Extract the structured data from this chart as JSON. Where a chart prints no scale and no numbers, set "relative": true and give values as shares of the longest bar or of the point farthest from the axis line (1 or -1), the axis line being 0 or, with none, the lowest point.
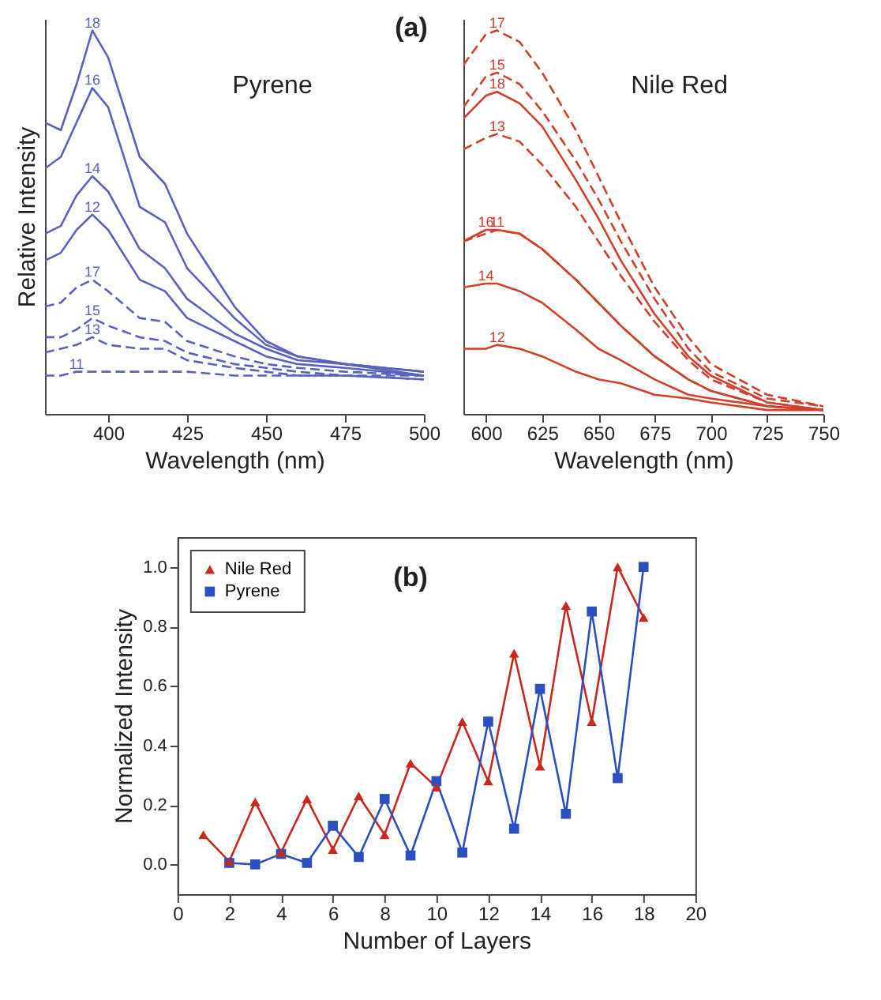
{
  "chart_data": [
    {
      "type": "line",
      "title": "Pyrene",
      "annotations": [
        "(a)"
      ],
      "xlabel": "Wavelength (nm)",
      "ylabel": "Relative Intensity",
      "relative": true,
      "tick_labels": "x",
      "xlim": [
        380,
        500
      ],
      "xticks": [
        400,
        425,
        450,
        475,
        500
      ],
      "x": [
        380,
        385,
        390,
        395,
        400,
        410,
        418,
        425,
        440,
        450,
        460,
        475,
        500
      ],
      "series": [
        {
          "name": "18",
          "color": "#5a62c0",
          "line_style": "solid",
          "values": [
            0.76,
            0.74,
            0.86,
            1.0,
            0.93,
            0.67,
            0.6,
            0.47,
            0.28,
            0.19,
            0.15,
            0.13,
            0.11
          ]
        },
        {
          "name": "16",
          "color": "#5a62c0",
          "line_style": "solid",
          "values": [
            0.64,
            0.67,
            0.76,
            0.85,
            0.8,
            0.54,
            0.5,
            0.38,
            0.25,
            0.18,
            0.15,
            0.13,
            0.11
          ]
        },
        {
          "name": "14",
          "color": "#5a62c0",
          "line_style": "solid",
          "values": [
            0.47,
            0.49,
            0.57,
            0.62,
            0.58,
            0.43,
            0.38,
            0.3,
            0.21,
            0.17,
            0.14,
            0.13,
            0.1
          ]
        },
        {
          "name": "12",
          "color": "#5a62c0",
          "line_style": "solid",
          "values": [
            0.4,
            0.42,
            0.48,
            0.52,
            0.48,
            0.35,
            0.32,
            0.25,
            0.19,
            0.15,
            0.13,
            0.12,
            0.1
          ]
        },
        {
          "name": "17",
          "color": "#5a62c0",
          "line_style": "dashed",
          "values": [
            0.28,
            0.29,
            0.33,
            0.35,
            0.32,
            0.25,
            0.24,
            0.19,
            0.15,
            0.13,
            0.12,
            0.11,
            0.1
          ]
        },
        {
          "name": "15",
          "color": "#5a62c0",
          "line_style": "dashed",
          "values": [
            0.2,
            0.2,
            0.22,
            0.25,
            0.23,
            0.2,
            0.19,
            0.16,
            0.13,
            0.12,
            0.11,
            0.1,
            0.1
          ]
        },
        {
          "name": "13",
          "color": "#5a62c0",
          "line_style": "dashed",
          "values": [
            0.16,
            0.17,
            0.18,
            0.2,
            0.18,
            0.17,
            0.17,
            0.14,
            0.12,
            0.11,
            0.1,
            0.1,
            0.09
          ]
        },
        {
          "name": "11",
          "color": "#5a62c0",
          "line_style": "dashed",
          "values": [
            0.1,
            0.1,
            0.11,
            0.11,
            0.11,
            0.11,
            0.11,
            0.11,
            0.1,
            0.1,
            0.1,
            0.1,
            0.09
          ]
        }
      ]
    },
    {
      "type": "line",
      "title": "Nile Red",
      "xlabel": "Wavelength (nm)",
      "relative": true,
      "tick_labels": "x",
      "xlim": [
        590,
        750
      ],
      "xticks": [
        600,
        625,
        650,
        675,
        700,
        725,
        750
      ],
      "x": [
        590,
        600,
        605,
        615,
        625,
        640,
        650,
        660,
        675,
        690,
        700,
        725,
        750
      ],
      "series": [
        {
          "name": "17",
          "color": "#d0402a",
          "line_style": "dashed",
          "values": [
            0.91,
            0.99,
            1.0,
            0.97,
            0.89,
            0.74,
            0.62,
            0.5,
            0.33,
            0.2,
            0.13,
            0.05,
            0.02
          ]
        },
        {
          "name": "15",
          "color": "#d0402a",
          "line_style": "dashed",
          "values": [
            0.8,
            0.88,
            0.89,
            0.86,
            0.79,
            0.66,
            0.56,
            0.45,
            0.3,
            0.17,
            0.11,
            0.04,
            0.02
          ]
        },
        {
          "name": "18",
          "color": "#d0402a",
          "line_style": "solid",
          "values": [
            0.77,
            0.83,
            0.84,
            0.81,
            0.75,
            0.61,
            0.51,
            0.4,
            0.26,
            0.15,
            0.1,
            0.03,
            0.01
          ]
        },
        {
          "name": "13",
          "color": "#d0402a",
          "line_style": "dashed",
          "values": [
            0.69,
            0.72,
            0.73,
            0.71,
            0.65,
            0.54,
            0.45,
            0.36,
            0.24,
            0.14,
            0.09,
            0.03,
            0.01
          ]
        },
        {
          "name": "11",
          "color": "#d0402a",
          "line_style": "dashed",
          "values": [
            0.45,
            0.47,
            0.48,
            0.47,
            0.43,
            0.35,
            0.29,
            0.23,
            0.15,
            0.09,
            0.06,
            0.02,
            0.01
          ]
        },
        {
          "name": "16",
          "color": "#d0402a",
          "line_style": "solid",
          "values": [
            0.45,
            0.48,
            0.48,
            0.47,
            0.43,
            0.35,
            0.29,
            0.23,
            0.15,
            0.09,
            0.06,
            0.02,
            0.01
          ]
        },
        {
          "name": "14",
          "color": "#d0402a",
          "line_style": "solid",
          "values": [
            0.33,
            0.34,
            0.34,
            0.32,
            0.29,
            0.22,
            0.17,
            0.14,
            0.09,
            0.05,
            0.04,
            0.02,
            0.01
          ]
        },
        {
          "name": "12",
          "color": "#d0402a",
          "line_style": "solid",
          "values": [
            0.17,
            0.17,
            0.18,
            0.17,
            0.15,
            0.11,
            0.09,
            0.08,
            0.05,
            0.04,
            0.03,
            0.01,
            0.01
          ]
        }
      ]
    },
    {
      "type": "line",
      "title": "(b)",
      "xlabel": "Number of Layers",
      "ylabel": "Normalized Intensity",
      "legend": "top left",
      "xlim": [
        0,
        20
      ],
      "xticks": [
        0,
        2,
        4,
        6,
        8,
        10,
        12,
        14,
        16,
        18,
        20
      ],
      "ylim": [
        -0.1,
        1.1
      ],
      "yticks": [
        {
          "value": 0,
          "label": "0.0"
        },
        {
          "value": 0.2,
          "label": "0.2"
        },
        {
          "value": 0.4,
          "label": "0.4"
        },
        {
          "value": 0.6,
          "label": "0.6"
        },
        {
          "value": 0.8,
          "label": "0.8"
        },
        {
          "value": 1,
          "label": "1.0"
        }
      ],
      "series": [
        {
          "name": "Nile Red",
          "color": "#c8281e",
          "marker": "triangle",
          "x": [
            1,
            2,
            3,
            4,
            5,
            6,
            7,
            8,
            9,
            10,
            11,
            12,
            13,
            14,
            15,
            16,
            17,
            18
          ],
          "values": [
            0.1,
            0.01,
            0.21,
            0.04,
            0.22,
            0.05,
            0.23,
            0.1,
            0.34,
            0.26,
            0.48,
            0.28,
            0.71,
            0.33,
            0.87,
            0.48,
            1.0,
            0.83
          ]
        },
        {
          "name": "Pyrene",
          "color": "#2b4fc0",
          "marker": "square",
          "x": [
            2,
            3,
            4,
            5,
            6,
            7,
            8,
            9,
            10,
            11,
            12,
            13,
            14,
            15,
            16,
            17,
            18
          ],
          "values": [
            0.005,
            0.0,
            0.035,
            0.005,
            0.13,
            0.025,
            0.22,
            0.03,
            0.28,
            0.04,
            0.48,
            0.12,
            0.59,
            0.17,
            0.85,
            0.29,
            1.0
          ]
        }
      ]
    }
  ]
}
